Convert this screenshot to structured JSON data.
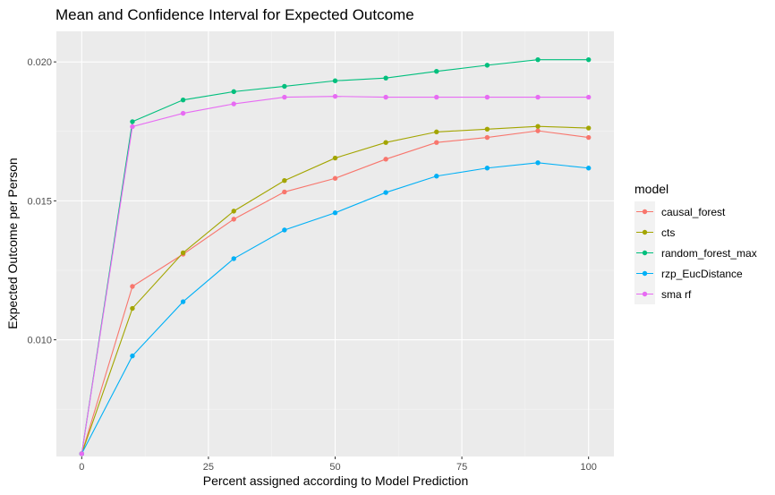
{
  "chart_data": {
    "type": "line",
    "title": "Mean and Confidence Interval for Expected Outcome",
    "xlabel": "Percent assigned according to Model Prediction",
    "ylabel": "Expected Outcome per Person",
    "xlim": [
      -5,
      105
    ],
    "ylim": [
      0.0058,
      0.0211
    ],
    "x_ticks": [
      0,
      25,
      50,
      75,
      100
    ],
    "x_tick_labels": [
      "0",
      "25",
      "50",
      "75",
      "100"
    ],
    "y_ticks": [
      0.01,
      0.015,
      0.02
    ],
    "y_tick_labels": [
      "0.010",
      "0.015",
      "0.020"
    ],
    "grid": true,
    "legend": {
      "title": "model",
      "position": "right"
    },
    "x": [
      0,
      10,
      20,
      30,
      40,
      50,
      60,
      70,
      80,
      90,
      100
    ],
    "series": [
      {
        "name": "causal_forest",
        "color": "#F8766D",
        "values": [
          0.0059,
          0.01192,
          0.01308,
          0.01434,
          0.01532,
          0.01581,
          0.0165,
          0.0171,
          0.01728,
          0.01752,
          0.01728
        ]
      },
      {
        "name": "cts",
        "color": "#A3A500",
        "values": [
          0.0059,
          0.01113,
          0.01313,
          0.01463,
          0.01573,
          0.01654,
          0.0171,
          0.01748,
          0.01758,
          0.01768,
          0.01762
        ]
      },
      {
        "name": "random_forest_max",
        "color": "#00BF7D",
        "values": [
          0.0059,
          0.01785,
          0.01863,
          0.01893,
          0.01912,
          0.01932,
          0.01942,
          0.01966,
          0.01988,
          0.02008,
          0.02008
        ]
      },
      {
        "name": "rzp_EucDistance",
        "color": "#00B0F6",
        "values": [
          0.0059,
          0.00942,
          0.01137,
          0.01292,
          0.01395,
          0.01457,
          0.0153,
          0.01589,
          0.01618,
          0.01637,
          0.01618
        ]
      },
      {
        "name": "sma rf",
        "color": "#E76BF3",
        "values": [
          0.0059,
          0.01767,
          0.01815,
          0.01849,
          0.01873,
          0.01876,
          0.01873,
          0.01873,
          0.01873,
          0.01873,
          0.01873
        ]
      }
    ]
  }
}
